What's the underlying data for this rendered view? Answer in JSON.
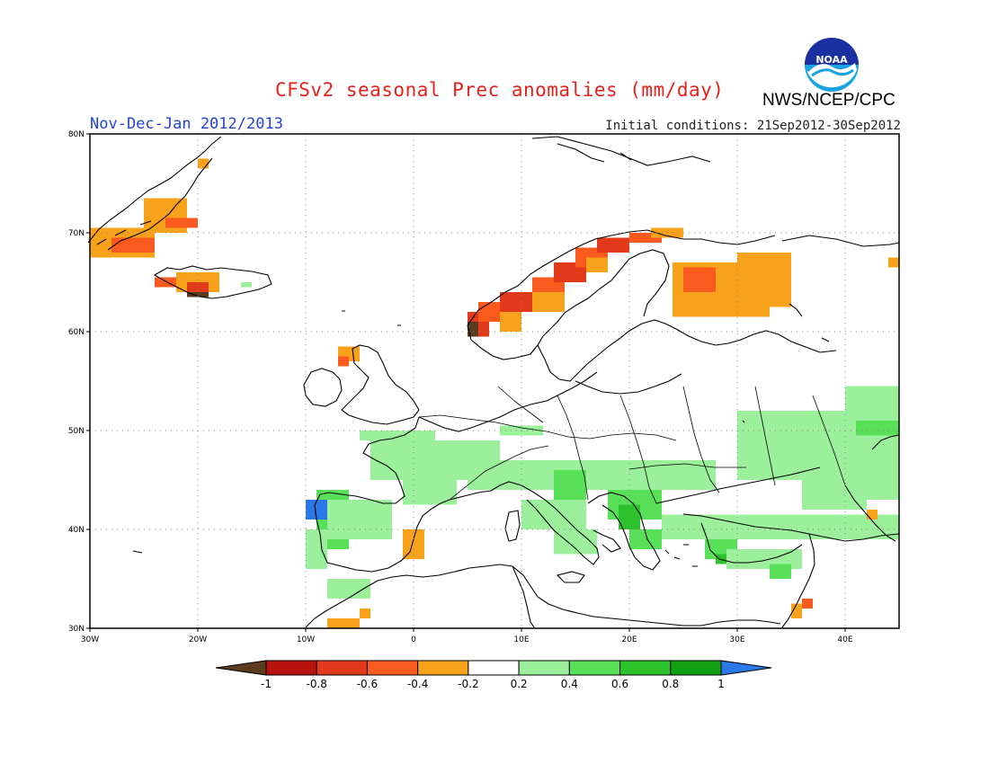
{
  "header": {
    "title": "CFSv2 seasonal Prec anomalies (mm/day)",
    "period": "Nov-Dec-Jan 2012/2013",
    "initial_conditions": "Initial conditions: 21Sep2012-30Sep2012",
    "organization": "NWS/NCEP/CPC",
    "logo_text": "NOAA"
  },
  "map": {
    "lon_range": [
      -30,
      45
    ],
    "lat_range": [
      30,
      80
    ],
    "lat_ticks": [
      "30N",
      "40N",
      "50N",
      "60N",
      "70N",
      "80N"
    ],
    "lon_ticks": [
      "30W",
      "20W",
      "10W",
      "0",
      "10E",
      "20E",
      "30E",
      "40E"
    ],
    "lat_tick_values": [
      30,
      40,
      50,
      60,
      70,
      80
    ],
    "lon_tick_values": [
      -30,
      -20,
      -10,
      0,
      10,
      20,
      30,
      40
    ],
    "gridlines": true
  },
  "colorbar": {
    "labels": [
      "-1",
      "-0.8",
      "-0.6",
      "-0.4",
      "-0.2",
      "0.2",
      "0.4",
      "0.6",
      "0.8",
      "1"
    ],
    "colors": [
      "#5c3a1e",
      "#b8120e",
      "#e03a1a",
      "#fb5a1e",
      "#f8a21c",
      "#ffffff",
      "#9cf09c",
      "#58e058",
      "#2cc22c",
      "#12a012",
      "#2a78e8"
    ]
  },
  "anomaly_regions": [
    {
      "cls": 4,
      "lon": [
        -30,
        -24
      ],
      "lat": [
        67.5,
        70.5
      ]
    },
    {
      "cls": 3,
      "lon": [
        -28,
        -24
      ],
      "lat": [
        68,
        69.5
      ]
    },
    {
      "cls": 4,
      "lon": [
        -25,
        -21
      ],
      "lat": [
        70,
        73.5
      ]
    },
    {
      "cls": 3,
      "lon": [
        -23,
        -20
      ],
      "lat": [
        70.5,
        71.5
      ]
    },
    {
      "cls": 4,
      "lon": [
        -20,
        -19
      ],
      "lat": [
        76.5,
        77.5
      ]
    },
    {
      "cls": 3,
      "lon": [
        -24,
        -22
      ],
      "lat": [
        64.5,
        65.5
      ]
    },
    {
      "cls": 4,
      "lon": [
        -22,
        -18
      ],
      "lat": [
        64,
        66
      ]
    },
    {
      "cls": 2,
      "lon": [
        -21,
        -19
      ],
      "lat": [
        63.5,
        65
      ]
    },
    {
      "cls": 0,
      "lon": [
        -21,
        -19
      ],
      "lat": [
        63.5,
        64
      ]
    },
    {
      "cls": 6,
      "lon": [
        -16,
        -15
      ],
      "lat": [
        64.5,
        65
      ]
    },
    {
      "cls": 4,
      "lon": [
        -7,
        -5
      ],
      "lat": [
        57,
        58.5
      ]
    },
    {
      "cls": 3,
      "lon": [
        -7,
        -6
      ],
      "lat": [
        56.5,
        57.5
      ]
    },
    {
      "cls": 2,
      "lon": [
        5,
        7
      ],
      "lat": [
        59.5,
        62
      ]
    },
    {
      "cls": 0,
      "lon": [
        5,
        6
      ],
      "lat": [
        59.5,
        61
      ]
    },
    {
      "cls": 3,
      "lon": [
        6,
        9
      ],
      "lat": [
        61,
        63
      ]
    },
    {
      "cls": 4,
      "lon": [
        8,
        10
      ],
      "lat": [
        60,
        62
      ]
    },
    {
      "cls": 2,
      "lon": [
        8,
        12
      ],
      "lat": [
        62,
        64
      ]
    },
    {
      "cls": 3,
      "lon": [
        11,
        14
      ],
      "lat": [
        63.5,
        65.5
      ]
    },
    {
      "cls": 4,
      "lon": [
        11,
        14
      ],
      "lat": [
        62,
        64
      ]
    },
    {
      "cls": 2,
      "lon": [
        13,
        16
      ],
      "lat": [
        65,
        67
      ]
    },
    {
      "cls": 3,
      "lon": [
        15,
        18
      ],
      "lat": [
        66.5,
        68.5
      ]
    },
    {
      "cls": 4,
      "lon": [
        16,
        18
      ],
      "lat": [
        66,
        67.5
      ]
    },
    {
      "cls": 2,
      "lon": [
        17,
        20
      ],
      "lat": [
        68,
        69.5
      ]
    },
    {
      "cls": 3,
      "lon": [
        20,
        23
      ],
      "lat": [
        69,
        70
      ]
    },
    {
      "cls": 4,
      "lon": [
        22,
        25
      ],
      "lat": [
        69.5,
        70.5
      ]
    },
    {
      "cls": 4,
      "lon": [
        24,
        33
      ],
      "lat": [
        61.5,
        67
      ]
    },
    {
      "cls": 4,
      "lon": [
        30,
        35
      ],
      "lat": [
        62.5,
        68
      ]
    },
    {
      "cls": 3,
      "lon": [
        25,
        28
      ],
      "lat": [
        64,
        66.5
      ]
    },
    {
      "cls": 4,
      "lon": [
        44,
        45
      ],
      "lat": [
        66.5,
        67.5
      ]
    },
    {
      "cls": 6,
      "lon": [
        -5,
        2
      ],
      "lat": [
        49,
        50
      ]
    },
    {
      "cls": 6,
      "lon": [
        -4,
        8
      ],
      "lat": [
        45,
        49
      ]
    },
    {
      "cls": 6,
      "lon": [
        -1,
        4
      ],
      "lat": [
        42.5,
        45.5
      ]
    },
    {
      "cls": 6,
      "lon": [
        8,
        12
      ],
      "lat": [
        49.5,
        50.5
      ]
    },
    {
      "cls": 6,
      "lon": [
        5,
        28
      ],
      "lat": [
        44,
        47
      ]
    },
    {
      "cls": 7,
      "lon": [
        13,
        16
      ],
      "lat": [
        43,
        46
      ]
    },
    {
      "cls": 7,
      "lon": [
        18,
        23
      ],
      "lat": [
        41,
        44
      ]
    },
    {
      "cls": 8,
      "lon": [
        19,
        21
      ],
      "lat": [
        40,
        42.5
      ]
    },
    {
      "cls": 7,
      "lon": [
        20,
        23
      ],
      "lat": [
        38,
        40
      ]
    },
    {
      "cls": 6,
      "lon": [
        10,
        16
      ],
      "lat": [
        40,
        43
      ]
    },
    {
      "cls": 6,
      "lon": [
        13,
        17
      ],
      "lat": [
        37.5,
        40
      ]
    },
    {
      "cls": 6,
      "lon": [
        23,
        45
      ],
      "lat": [
        39,
        41.5
      ]
    },
    {
      "cls": 7,
      "lon": [
        27,
        30
      ],
      "lat": [
        37,
        39
      ]
    },
    {
      "cls": 8,
      "lon": [
        28,
        30
      ],
      "lat": [
        36.5,
        37.5
      ]
    },
    {
      "cls": 6,
      "lon": [
        29,
        36
      ],
      "lat": [
        36,
        38
      ]
    },
    {
      "cls": 7,
      "lon": [
        33,
        35
      ],
      "lat": [
        35,
        36.5
      ]
    },
    {
      "cls": 6,
      "lon": [
        30,
        44
      ],
      "lat": [
        45,
        52
      ]
    },
    {
      "cls": 6,
      "lon": [
        40,
        45
      ],
      "lat": [
        43,
        54.5
      ]
    },
    {
      "cls": 7,
      "lon": [
        41,
        45
      ],
      "lat": [
        49.5,
        51
      ]
    },
    {
      "cls": 6,
      "lon": [
        36,
        42
      ],
      "lat": [
        42,
        45
      ]
    },
    {
      "cls": 4,
      "lon": [
        42,
        43
      ],
      "lat": [
        41,
        42
      ]
    },
    {
      "cls": 7,
      "lon": [
        -9,
        -6
      ],
      "lat": [
        38,
        44
      ]
    },
    {
      "cls": 6,
      "lon": [
        -8,
        -2
      ],
      "lat": [
        39,
        43
      ]
    },
    {
      "cls": 6,
      "lon": [
        -10,
        -8
      ],
      "lat": [
        36,
        40
      ]
    },
    {
      "cls": 10,
      "lon": [
        -10,
        -8
      ],
      "lat": [
        41,
        43
      ]
    },
    {
      "cls": 6,
      "lon": [
        -8,
        -4
      ],
      "lat": [
        33,
        35
      ]
    },
    {
      "cls": 4,
      "lon": [
        -1,
        1
      ],
      "lat": [
        37,
        40
      ]
    },
    {
      "cls": 4,
      "lon": [
        -8,
        -5
      ],
      "lat": [
        30,
        31
      ]
    },
    {
      "cls": 4,
      "lon": [
        -5,
        -4
      ],
      "lat": [
        31,
        32
      ]
    },
    {
      "cls": 4,
      "lon": [
        35,
        36
      ],
      "lat": [
        31,
        32.5
      ]
    },
    {
      "cls": 3,
      "lon": [
        36,
        37
      ],
      "lat": [
        32,
        33
      ]
    }
  ]
}
